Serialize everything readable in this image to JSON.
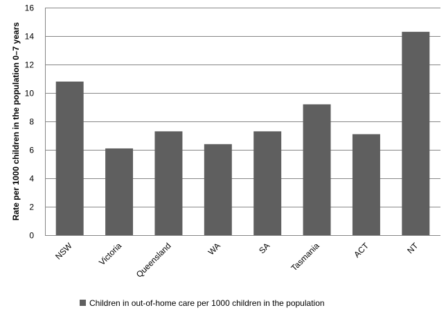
{
  "chart_data": {
    "type": "bar",
    "categories": [
      "NSW",
      "Victoria",
      "Queensland",
      "WA",
      "SA",
      "Tasmania",
      "ACT",
      "NT"
    ],
    "series": [
      {
        "name": "Children in out-of-home care per 1000 children in the population",
        "values": [
          10.8,
          6.1,
          7.3,
          6.4,
          7.3,
          9.2,
          7.1,
          14.3
        ]
      }
    ],
    "title": "",
    "xlabel": "",
    "ylabel": "Rate per 1000 children in the population 0–7 years",
    "ylim": [
      0,
      16
    ],
    "yticks": [
      0,
      2,
      4,
      6,
      8,
      10,
      12,
      14,
      16
    ],
    "grid": "horizontal",
    "legend_position": "bottom",
    "colors": {
      "bar": "#5f5f5f",
      "grid": "#868686",
      "axis": "#868686"
    }
  }
}
